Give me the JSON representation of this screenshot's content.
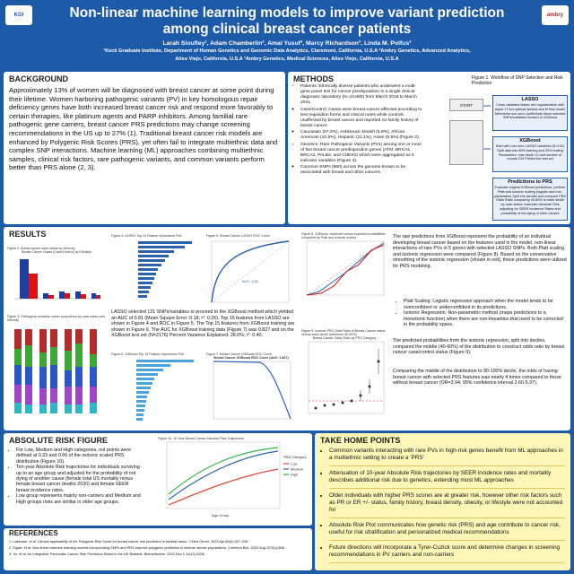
{
  "header": {
    "title": "Non-linear machine learning models to improve variant prediction among clinical breast cancer patients",
    "authors": "Larah Sioufley¹, Adam Chamberlin², Amal Yusuf³, Marcy Richardson³, Linda M. Polfus²",
    "affil1": "¹Keck Graduate Institute, Department of Human Genetics and Genomic Data Analytics, Claremont, California, U.S.A ²Ambry Genetics, Advanced Analytics,",
    "affil2": "Aliso Viejo, California, U.S.A ³Ambry Genetics, Medical Sciences, Aliso Viejo, California, U.S.A"
  },
  "background": {
    "heading": "BACKGROUND",
    "text": "Approximately 13% of women will be diagnosed with breast cancer at some point during their lifetime. Women harboring pathogenic variants (PV) in key homologous repair deficiency genes have both increased breast cancer risk and respond more favorably to certain therapies, like platinum agents and PARP inhibitors. Among familial rare pathogenic gene carriers, breast cancer PRS predictions may change screening recommendations in the US up to 27% (1). Traditional breast cancer risk models are enhanced by Polygenic Risk Scores (PRS), yet often fail to integrate multiethnic data and complex SNP interactions. Machine learning (ML) approaches combining multiethnic samples, clinical risk factors, rare pathogenic variants, and common variants perform better than PRS alone (2, 3)."
  },
  "methods": {
    "heading": "METHODS",
    "patients": "Patients: Ethnically diverse patients who underwent a multi-gene panel test for cancer predisposition in a single clinical diagnostic laboratory (N=10,880) from March 2018 to March 2021.",
    "case_control": "Case/Control: Cases were breast-cancer-affected according to test requisition forms and clinical notes while controls unaffected by breast cancer and reported no family history of breast cancer.",
    "ancestry": "Caucasian (67.2%), Ashkenazi Jewish (5.8%), African American (10.5%), Hispanic (11.1%), Asian (5.5%) (Figure 2).",
    "genetics": "Genetics: Rare Pathogenic Variants (PVs) among one or more of five breast cancer predisposition genes (ATM, BRCA1, BRCA2, PALB2, and CHEK2) which were aggregated as 5 indicator variables (Figure 3).",
    "snps": "Common SNPs (860) across the genome known to be associated with breast and other cancers.",
    "flow_title": "Figure 1. Workflow of SNP Selection and Risk Prediction",
    "start": "START",
    "lasso_title": "LASSO",
    "lasso_text": "Cross validated elastic net regularization with alpha 1 Find optimal lambda and fit final model Determine non zero coefficients Move selected SNPs/variables forward to XGBoost",
    "xgb_title": "XGBoost",
    "xgb_text": "Start with non zero LASSO variables (N=131) Split data into 80% training and 20% testing Parameters: max depth 10 and number of rounds 213 Predict the test set",
    "pred_title": "Predictions to PRS",
    "pred_text": "Evaluate original XGBoost predictions, perform Platt and Isotonic scaling (logistic and non-parametric) Split into deciles and compare PRS Odds Ratio comparing 40-60% to each decile by case status Calculate Absolute Risk adjusting for SEER incidence Rates and probability of not dying of other causes"
  },
  "results": {
    "heading": "RESULTS",
    "fig2_cap": "Figure 2. Breast cancer case status by ethnicity",
    "fig2_title": "Breast Cancer Cases (Case/Control) by Ethnicity",
    "fig3_cap": "Figure 3. Pathogenic mutation carrier proportions by case status and ethnicity",
    "fig4_cap": "Figure 4. LASSO Top 15 Feature Importance Plot",
    "fig5_cap": "Figure 5. Breast Cancer LASSO ROC Curve",
    "auc1": "AUC: 0.81",
    "fig6_cap": "Figure 6. XGBoost Top 15 Feature Importance Plot",
    "fig7_cap": "Figure 7. Breast Cancer XGBoost ROC Curve",
    "fig7_title": "Breast Cancer XGBoost ROC Curve (AUC: 0.827)",
    "lasso_text": "LASSO selected 131 SNPs/variables to proceed to the XGBoost method which yielded an AUC of 0.81 (Mean Square Error: 0.18; r²: 0.26). Top 15 features from LASSO are shown in Figure 4 and ROC in Figure 5. The Top 15 features from XGBoost training are shown in Figure 6. The AUC for XGBoost training data (Figure 7) was 0.827 and on the XGBoost test set (N=2176) Percent Variance Explained: 28.6%; r²: 0.40.",
    "fig8_cap": "Figure 8. XGBoost, observed versus expected probabilities compared by Platt and Isotonic scaled",
    "fig9_cap": "Figure 9. Isotonic PRS Odds Ratio of Breast Cancer status versus each decile (reference 40-60%)",
    "fig9_title": "Breast Cancer Odds Ratio by PRS Category",
    "text_a": "The raw predictions from XGBoost represent the probability of an individual developing breast cancer based on the features used in the model, non-linear interactions of rare PVs in 5 genes with selected LASSO SNPs. Both Platt scaling and Isotonic regression were compared (Figure 8). Based on the conservative smoothing of the isotonic regression (shown in red), these predictions were utilized for PRS modeling.",
    "platt": "Platt Scaling: Logistic regression approach when the model tends to be overconfident or underconfident in its predictions.",
    "isotonic": "Isotonic Regression: Non-parametric method (maps predictions to a monotonic function) when there are non-linearities that need to be corrected in the probability space.",
    "text_b": "The predicted probabilities from the isotonic regression, split into deciles, compared the middle (40-60%) of the distribution to construct odds ratio by breast cancer case/control status (Figure 9).",
    "text_c": "Comparing the middle of the distribution to 90-100% decile, the odds of having breast cancer with selected PRS features was nearly 4 times compared to those without breast cancer (OR=3.94; 95% confidence interval 2.60-5.97)."
  },
  "absolute": {
    "heading": "ABSOLUTE RISK FIGURE",
    "items": [
      "For Low, Medium and High categories, out points were defined at 0.33 and 0.66 of the isotonic scaled PRS distribution (Figure 10).",
      "Ten-year Absolute Risk trajectories for individuals surviving up to an age group and adjusted for the probability of not dying of another cause (female total US mortality minus female breast cancer deaths 2020) and female SEER breast incidence rates.",
      "Low group represents mainly non-carriers and Medium and High groups risks are similar in older age groups."
    ],
    "fig10_cap": "Figure 10. 10-Year Breast Cancer Absolute Risk Trajectories",
    "xlabel": "Age Group",
    "legend_title": "PRS Category",
    "legend": [
      "Low",
      "Medium",
      "High"
    ]
  },
  "take_home": {
    "heading": "TAKE HOME POINTS",
    "items": [
      "Common variants interacting with rare PVs in high-risk genes benefit from ML approaches in a multiethnic setting to create a 'PRS'",
      "Attenuation of 10-year Absolute Risk trajectories by SEER incidence rates and mortality describes additional risk due to genetics, extending most ML approaches",
      "Older individuals with higher PRS scores are at greater risk, however other risk factors such as PR or ER +/- status, family history, breast density, obesity, or lifestyle were not accounted for",
      "Absolute Risk Plot communicates how genetic risk (PRS) and age contribute to cancer risk, useful for risk stratification and personalized medical recommendations",
      "Future directions will incorporate a Tyrer-Cuzick score and determine changes in screening recommendations in PV carriers and non-carriers"
    ]
  },
  "references": {
    "heading": "REFERENCES",
    "items": [
      "1. Lakeman, et al. Clinical applicability of the Polygenic Risk Score for breast cancer risk prediction in familial cases. J Med Genet. 2023 Apr;60(4):327-336.",
      "2. Elgart, et al. Non-linear machine learning models incorporating SNPs and PRS improve polygenic prediction in diverse human populations. Commun Biol. 2022 Aug 22;5(1):856.",
      "3. Xu, et al. An Integrative Pancreatic Cancer Risk Prediction Model in the UK Biobank. Biomedicines. 2023 Dec 1;11(12):3206."
    ]
  },
  "colors": {
    "frame": "#1d5aa8",
    "panel": "#ffffff",
    "highlight": "#fff7b8",
    "accent": "#2a62b0"
  }
}
